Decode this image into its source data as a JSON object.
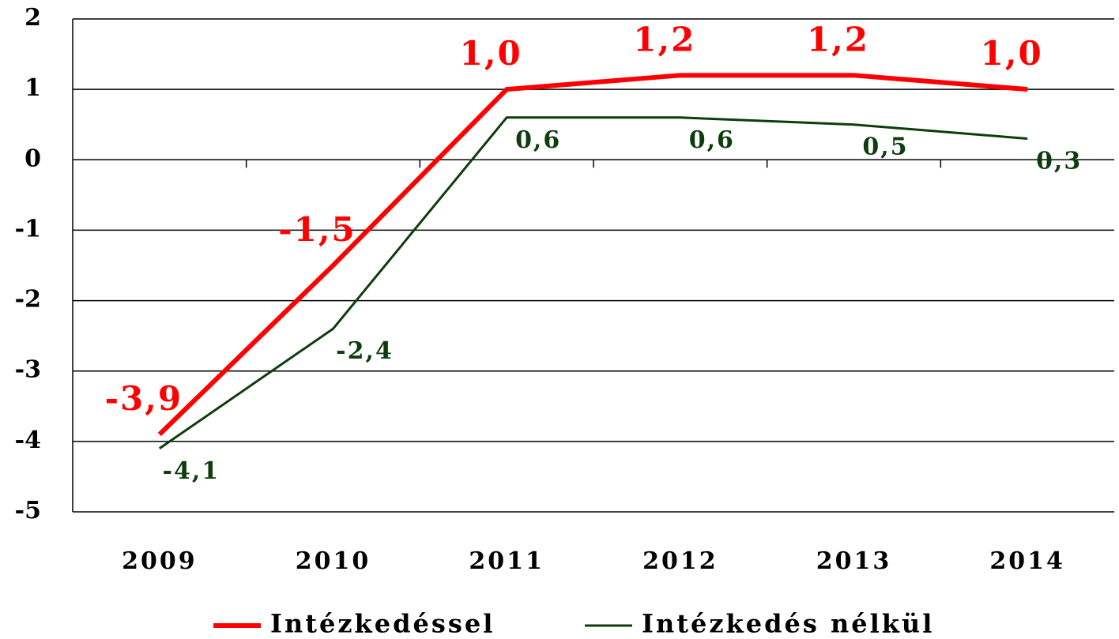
{
  "chart_data": {
    "type": "line",
    "categories": [
      "2009",
      "2010",
      "2011",
      "2012",
      "2013",
      "2014"
    ],
    "series": [
      {
        "name": "Intézkedéssel",
        "color": "#ff0000",
        "values": [
          -3.9,
          -1.5,
          1.0,
          1.2,
          1.2,
          1.0
        ],
        "value_labels": [
          "-3,9",
          "-1,5",
          "1,0",
          "1,2",
          "1,2",
          "1,0"
        ]
      },
      {
        "name": "Intézkedés nélkül",
        "color": "#0d3d0d",
        "values": [
          -4.1,
          -2.4,
          0.6,
          0.6,
          0.5,
          0.3
        ],
        "value_labels": [
          "-4,1",
          "-2,4",
          "0,6",
          "0,6",
          "0,5",
          "0,3"
        ]
      }
    ],
    "ylim": [
      -5,
      2
    ],
    "yticks": [
      -5,
      -4,
      -3,
      -2,
      -1,
      0,
      1,
      2
    ],
    "grid": true,
    "legend": "bottom"
  }
}
